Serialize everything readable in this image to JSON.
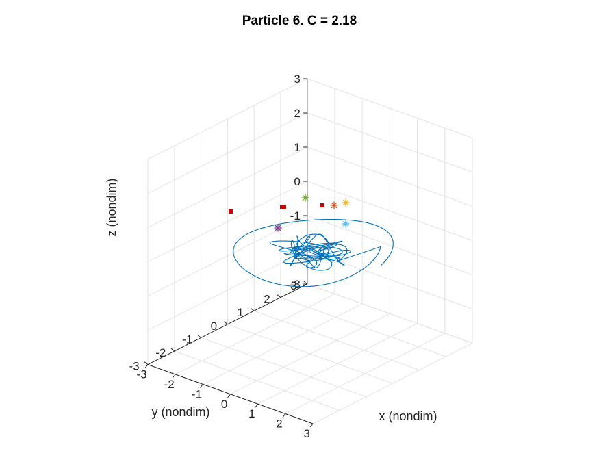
{
  "chart_data": {
    "type": "line3d",
    "title": "Particle 6. C = 2.18",
    "xlabel": "x (nondim)",
    "ylabel": "y (nondim)",
    "zlabel": "z (nondim)",
    "xlim": [
      -3,
      3
    ],
    "ylim": [
      -3,
      3
    ],
    "zlim": [
      -3,
      3
    ],
    "x_ticks": [
      "-3",
      "-2",
      "-1",
      "0",
      "1",
      "2",
      "3"
    ],
    "y_ticks": [
      "-3",
      "-2",
      "-1",
      "0",
      "1",
      "2",
      "3"
    ],
    "z_ticks": [
      "-3",
      "-2",
      "-1",
      "0",
      "1",
      "2",
      "3"
    ],
    "grid": true,
    "view": "3d-isometric",
    "trajectory_color": "#0072BD",
    "trajectory_description": "wide outer spiral loop of radius about 2 in the x-y plane around a tangled inner cluster near the origin",
    "star_markers": [
      {
        "color": "#77AC30"
      },
      {
        "color": "#EDB120"
      },
      {
        "color": "#4DBEEE"
      },
      {
        "color": "#7E2F8E"
      },
      {
        "color": "#D95319"
      }
    ],
    "square_marker_color": "#CC0000"
  }
}
